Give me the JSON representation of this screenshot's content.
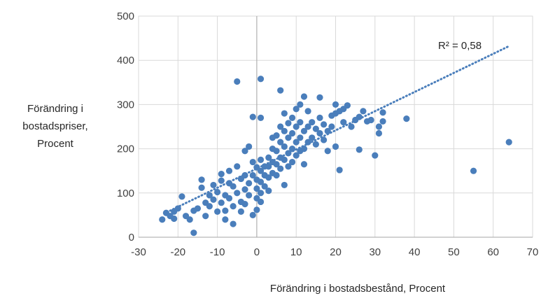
{
  "chart_data": {
    "type": "scatter",
    "title": "",
    "xlabel": "Förändring i bostadsbestånd, Procent",
    "ylabel_lines": [
      "Förändring i",
      "bostadspriser,",
      "Procent"
    ],
    "xlim": [
      -30,
      70
    ],
    "ylim": [
      0,
      500
    ],
    "x_ticks": [
      -30,
      -20,
      -10,
      0,
      10,
      20,
      30,
      40,
      50,
      60,
      70
    ],
    "y_ticks": [
      0,
      100,
      200,
      300,
      400,
      500
    ],
    "x_tick_labels": [
      "-30",
      "-20",
      "-10",
      "0",
      "10",
      "20",
      "30",
      "40",
      "50",
      "60",
      "70"
    ],
    "y_tick_labels": [
      "0",
      "100",
      "200",
      "300",
      "400",
      "500"
    ],
    "grid": true,
    "legend": "none",
    "marker_color": "#4a7ebb",
    "trendline": {
      "type": "linear",
      "style": "dotted",
      "color": "#4a7ebb",
      "start": [
        -22,
        60
      ],
      "end": [
        64,
        432
      ],
      "r2_label": "R² = 0,58"
    },
    "series": [
      {
        "points": [
          [
            -24,
            40
          ],
          [
            -23,
            55
          ],
          [
            -22,
            48
          ],
          [
            -21,
            42
          ],
          [
            -20,
            65
          ],
          [
            -21,
            58
          ],
          [
            -19,
            92
          ],
          [
            -18,
            48
          ],
          [
            -17,
            40
          ],
          [
            -16,
            60
          ],
          [
            -16,
            10
          ],
          [
            -15,
            65
          ],
          [
            -14,
            130
          ],
          [
            -14,
            112
          ],
          [
            -13,
            78
          ],
          [
            -13,
            48
          ],
          [
            -12,
            95
          ],
          [
            -12,
            70
          ],
          [
            -11,
            118
          ],
          [
            -11,
            85
          ],
          [
            -10,
            58
          ],
          [
            -10,
            102
          ],
          [
            -9,
            128
          ],
          [
            -9,
            78
          ],
          [
            -9,
            143
          ],
          [
            -8,
            40
          ],
          [
            -8,
            95
          ],
          [
            -8,
            60
          ],
          [
            -7,
            122
          ],
          [
            -7,
            150
          ],
          [
            -7,
            88
          ],
          [
            -6,
            70
          ],
          [
            -6,
            30
          ],
          [
            -6,
            115
          ],
          [
            -5,
            160
          ],
          [
            -5,
            100
          ],
          [
            -5,
            352
          ],
          [
            -4,
            132
          ],
          [
            -4,
            80
          ],
          [
            -4,
            58
          ],
          [
            -3,
            140
          ],
          [
            -3,
            108
          ],
          [
            -3,
            75
          ],
          [
            -3,
            195
          ],
          [
            -2,
            205
          ],
          [
            -2,
            122
          ],
          [
            -2,
            95
          ],
          [
            -1,
            170
          ],
          [
            -1,
            140
          ],
          [
            -1,
            50
          ],
          [
            -1,
            272
          ],
          [
            0,
            158
          ],
          [
            0,
            130
          ],
          [
            0,
            110
          ],
          [
            0,
            88
          ],
          [
            0,
            62
          ],
          [
            1,
            175
          ],
          [
            1,
            150
          ],
          [
            1,
            125
          ],
          [
            1,
            100
          ],
          [
            1,
            80
          ],
          [
            1,
            270
          ],
          [
            1,
            358
          ],
          [
            2,
            160
          ],
          [
            2,
            140
          ],
          [
            2,
            115
          ],
          [
            3,
            180
          ],
          [
            3,
            160
          ],
          [
            3,
            135
          ],
          [
            3,
            105
          ],
          [
            4,
            225
          ],
          [
            4,
            200
          ],
          [
            4,
            170
          ],
          [
            4,
            145
          ],
          [
            5,
            230
          ],
          [
            5,
            195
          ],
          [
            5,
            165
          ],
          [
            5,
            140
          ],
          [
            6,
            250
          ],
          [
            6,
            215
          ],
          [
            6,
            180
          ],
          [
            6,
            155
          ],
          [
            6,
            332
          ],
          [
            7,
            280
          ],
          [
            7,
            240
          ],
          [
            7,
            205
          ],
          [
            7,
            175
          ],
          [
            7,
            118
          ],
          [
            8,
            258
          ],
          [
            8,
            225
          ],
          [
            8,
            190
          ],
          [
            8,
            160
          ],
          [
            9,
            270
          ],
          [
            9,
            235
          ],
          [
            9,
            200
          ],
          [
            9,
            170
          ],
          [
            10,
            290
          ],
          [
            10,
            250
          ],
          [
            10,
            215
          ],
          [
            10,
            185
          ],
          [
            11,
            300
          ],
          [
            11,
            260
          ],
          [
            11,
            225
          ],
          [
            11,
            195
          ],
          [
            12,
            318
          ],
          [
            12,
            240
          ],
          [
            12,
            200
          ],
          [
            12,
            165
          ],
          [
            13,
            285
          ],
          [
            13,
            250
          ],
          [
            13,
            215
          ],
          [
            14,
            260
          ],
          [
            14,
            225
          ],
          [
            15,
            245
          ],
          [
            15,
            210
          ],
          [
            16,
            316
          ],
          [
            16,
            270
          ],
          [
            16,
            235
          ],
          [
            17,
            255
          ],
          [
            17,
            220
          ],
          [
            18,
            240
          ],
          [
            18,
            195
          ],
          [
            19,
            275
          ],
          [
            19,
            250
          ],
          [
            20,
            300
          ],
          [
            20,
            280
          ],
          [
            20,
            205
          ],
          [
            21,
            285
          ],
          [
            21,
            152
          ],
          [
            22,
            260
          ],
          [
            22,
            290
          ],
          [
            23,
            298
          ],
          [
            24,
            250
          ],
          [
            25,
            265
          ],
          [
            26,
            198
          ],
          [
            26,
            272
          ],
          [
            27,
            285
          ],
          [
            28,
            262
          ],
          [
            29,
            265
          ],
          [
            30,
            185
          ],
          [
            31,
            250
          ],
          [
            31,
            235
          ],
          [
            32,
            282
          ],
          [
            32,
            262
          ],
          [
            38,
            268
          ],
          [
            55,
            150
          ],
          [
            64,
            215
          ]
        ]
      }
    ]
  }
}
